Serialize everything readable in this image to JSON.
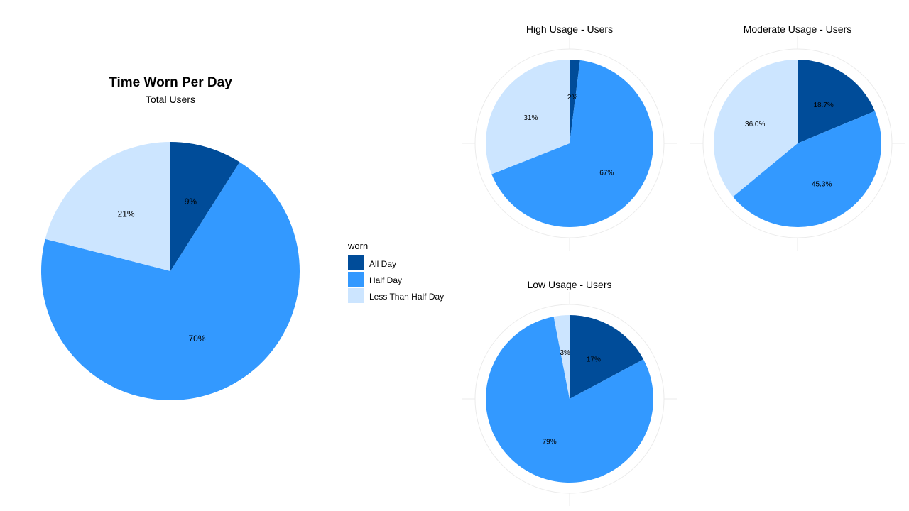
{
  "main_chart": {
    "title": "Time Worn Per Day",
    "subtitle": "Total Users"
  },
  "legend": {
    "title": "worn",
    "items": [
      {
        "label": "All Day",
        "color": "#004C99"
      },
      {
        "label": "Half Day",
        "color": "#3399FF"
      },
      {
        "label": "Less Than Half Day",
        "color": "#CCE5FF"
      }
    ]
  },
  "chart_data": [
    {
      "type": "pie",
      "title": "Time Worn Per Day",
      "subtitle": "Total Users",
      "categories": [
        "All Day",
        "Half Day",
        "Less Than Half Day"
      ],
      "values": [
        9,
        70,
        21
      ],
      "labels": [
        "9%",
        "70%",
        "21%"
      ]
    },
    {
      "type": "pie",
      "title": "High Usage - Users",
      "categories": [
        "All Day",
        "Half Day",
        "Less Than Half Day"
      ],
      "values": [
        2,
        67,
        31
      ],
      "labels": [
        "2%",
        "67%",
        "31%"
      ]
    },
    {
      "type": "pie",
      "title": "Moderate Usage - Users",
      "categories": [
        "All Day",
        "Half Day",
        "Less Than Half Day"
      ],
      "values": [
        18.7,
        45.3,
        36.0
      ],
      "labels": [
        "18.7%",
        "45.3%",
        "36.0%"
      ]
    },
    {
      "type": "pie",
      "title": "Low Usage - Users",
      "categories": [
        "All Day",
        "Half Day",
        "Less Than Half Day"
      ],
      "values": [
        17,
        79,
        3
      ],
      "labels": [
        "17%",
        "79%",
        "3%"
      ]
    }
  ]
}
